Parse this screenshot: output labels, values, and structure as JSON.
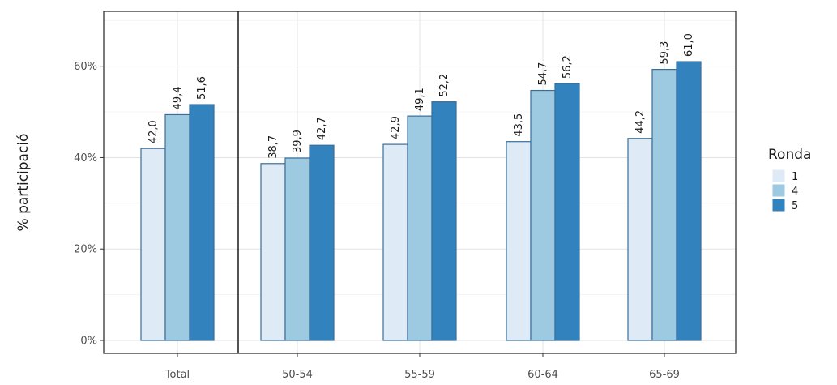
{
  "chart_data": {
    "type": "bar",
    "title": "",
    "xlabel": "",
    "ylabel": "% participació",
    "ylim": [
      0,
      72
    ],
    "yticks": [
      0,
      20,
      40,
      60
    ],
    "ytick_labels": [
      "0%",
      "20%",
      "40%",
      "60%"
    ],
    "grid": true,
    "legend_position": "right",
    "legend_title": "Ronda",
    "separator_after_category": "Total",
    "categories": [
      "Total",
      "50-54",
      "55-59",
      "60-64",
      "65-69"
    ],
    "series": [
      {
        "name": "1",
        "color": "#deebf7",
        "values": [
          42.0,
          38.7,
          42.9,
          43.5,
          44.2
        ],
        "labels": [
          "42,0",
          "38,7",
          "42,9",
          "43,5",
          "44,2"
        ]
      },
      {
        "name": "4",
        "color": "#9ecae1",
        "values": [
          49.4,
          39.9,
          49.1,
          54.7,
          59.3
        ],
        "labels": [
          "49,4",
          "39,9",
          "49,1",
          "54,7",
          "59,3"
        ]
      },
      {
        "name": "5",
        "color": "#3182bd",
        "values": [
          51.6,
          42.7,
          52.2,
          56.2,
          61.0
        ],
        "labels": [
          "51,6",
          "42,7",
          "52,2",
          "56,2",
          "61,0"
        ]
      }
    ]
  }
}
